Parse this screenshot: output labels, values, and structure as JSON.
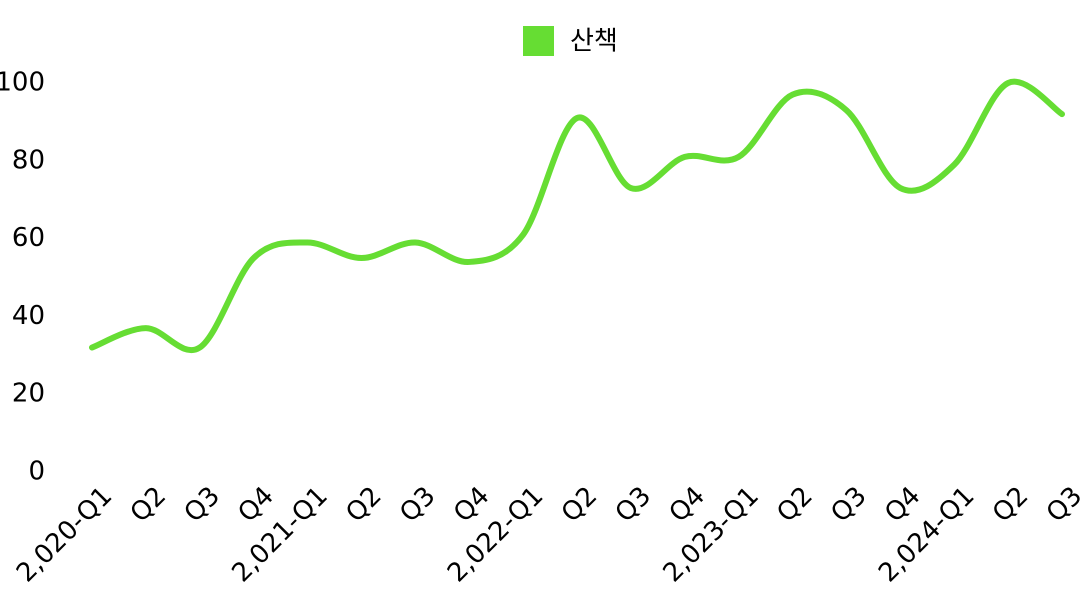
{
  "chart_data": {
    "type": "line",
    "categories": [
      "2,020-Q1",
      "Q2",
      "Q3",
      "Q4",
      "2,021-Q1",
      "Q2",
      "Q3",
      "Q4",
      "2,022-Q1",
      "Q2",
      "Q3",
      "Q4",
      "2,023-Q1",
      "Q2",
      "Q3",
      "Q4",
      "2,024-Q1",
      "Q2",
      "Q3"
    ],
    "series": [
      {
        "name": "산책",
        "color": "#66dd33",
        "values": [
          32,
          37,
          32,
          55,
          59,
          55,
          59,
          54,
          61,
          91,
          73,
          81,
          81,
          97,
          93,
          73,
          79,
          100,
          92
        ]
      }
    ],
    "ylim": [
      0,
      100
    ],
    "yticks": [
      0,
      20,
      40,
      60,
      80,
      100
    ],
    "grid": false,
    "legend": "top"
  }
}
